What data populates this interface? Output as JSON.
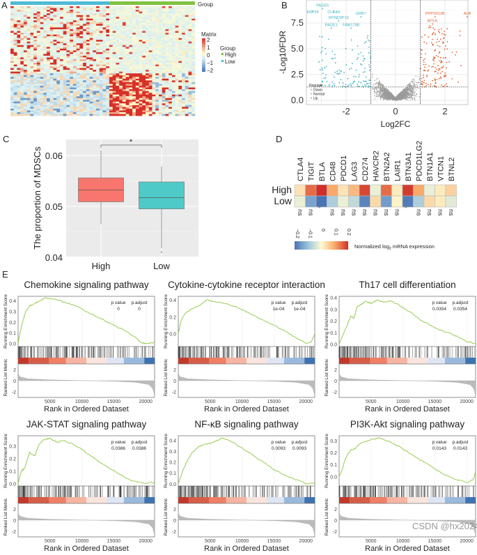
{
  "watermark": "CSDN @hx2024",
  "chart_data": [
    {
      "panel": "A",
      "type": "heatmap",
      "annotation_label": "Group",
      "color_legend": {
        "title": "Matrix",
        "ticks": [
          "2",
          "1",
          "0",
          "−1",
          "−2"
        ],
        "range": [
          -2,
          2
        ]
      },
      "group_legend": {
        "title": "Group",
        "items": [
          {
            "label": "High",
            "color": "#7fc241"
          },
          {
            "label": "Low",
            "color": "#4dbbd5"
          }
        ]
      },
      "column_groups": [
        "Low",
        "High"
      ],
      "colors": {
        "low": "#4575b4",
        "mid_low": "#d6eef5",
        "mid": "#fffbd0",
        "high": "#d73027"
      }
    },
    {
      "panel": "B",
      "type": "scatter",
      "xlabel": "Log2FC",
      "ylabel": "-Log10FDR",
      "xlim": [
        -3.6,
        2.95
      ],
      "ylim": [
        -0.3,
        9.7
      ],
      "xticks": [
        -2,
        0,
        2
      ],
      "yticks": [
        "0.0",
        "2.5",
        "5.0",
        "7.5"
      ],
      "vlines": [
        -1,
        1
      ],
      "hline": 1.3,
      "grid": true,
      "legend": {
        "title": "Regulate",
        "position": "bottom-left",
        "items": [
          {
            "label": "Down",
            "color": "#3bb3c3"
          },
          {
            "label": "Normal",
            "color": "#9a9a9a"
          },
          {
            "label": "Up",
            "color": "#e0622f"
          }
        ]
      },
      "labeled_genes": [
        {
          "gene": "PAGE5",
          "x": -2.95,
          "y": 9.1,
          "group": "Down"
        },
        {
          "gene": "KRT24",
          "x": -3.35,
          "y": 8.8,
          "group": "Down"
        },
        {
          "gene": "CLCA4",
          "x": -2.5,
          "y": 8.8,
          "group": "Down"
        },
        {
          "gene": "MTND2P13",
          "x": -2.3,
          "y": 7.9,
          "group": "Down"
        },
        {
          "gene": "GRB7",
          "x": -1.4,
          "y": 8.3,
          "group": "Down"
        },
        {
          "gene": "PAGE1",
          "x": -2.6,
          "y": 7.2,
          "group": "Down"
        },
        {
          "gene": "FAM178B",
          "x": -1.8,
          "y": 7.2,
          "group": "Down"
        },
        {
          "gene": "PPP1R12B",
          "x": 1.6,
          "y": 8.3,
          "group": "Up"
        },
        {
          "gene": "ALB",
          "x": 2.9,
          "y": 8.3,
          "group": "Up"
        },
        {
          "gene": "MYLK",
          "x": 1.5,
          "y": 7.6,
          "group": "Up"
        }
      ]
    },
    {
      "panel": "C",
      "type": "box",
      "ylabel": "The proportion of MDSCs",
      "ylim": [
        0.04,
        0.0625
      ],
      "yticks": [
        "0.04",
        "0.05",
        "0.06"
      ],
      "categories": [
        "High",
        "Low"
      ],
      "boxes": [
        {
          "name": "High",
          "color": "#f8766d",
          "whisker_low": 0.0465,
          "q1": 0.0509,
          "median": 0.0532,
          "q3": 0.0556,
          "whisker_high": 0.061,
          "outliers": []
        },
        {
          "name": "Low",
          "color": "#4ecbc8",
          "whisker_low": 0.0418,
          "q1": 0.0495,
          "median": 0.0517,
          "q3": 0.0548,
          "whisker_high": 0.0578,
          "outliers": [
            0.041
          ]
        }
      ],
      "significance": "*",
      "grid": true
    },
    {
      "panel": "D",
      "type": "heatmap",
      "genes": [
        "CTLA4",
        "TIGIT",
        "BTLA",
        "CD48",
        "PDCD1",
        "LAG3",
        "CD274",
        "HAVCR2",
        "BTN2A2",
        "LAIR1",
        "BTN3A1",
        "PDCD1LG2",
        "BTN1A1",
        "VTCN1",
        "BTNL2"
      ],
      "rows": [
        {
          "label": "High",
          "values": [
            0.03,
            0.15,
            0.2,
            0.1,
            0.03,
            0.08,
            0.18,
            -0.02,
            0.15,
            0.02,
            0.19,
            0.1,
            -0.02,
            0.02,
            0.05
          ]
        },
        {
          "label": "Low",
          "values": [
            -0.02,
            -0.14,
            -0.2,
            -0.08,
            -0.02,
            -0.06,
            -0.18,
            0.04,
            -0.15,
            0.01,
            -0.19,
            -0.08,
            0.04,
            0.02,
            -0.03
          ]
        }
      ],
      "significance": [
        "ns",
        "ns",
        "*",
        "ns",
        "ns",
        "ns",
        "ns",
        "ns",
        "ns",
        "ns",
        "*",
        "ns",
        "ns",
        "ns",
        "ns"
      ],
      "colorbar": {
        "ticks": [
          "−0.2",
          "−0.1",
          "0",
          "0.1",
          "0.2"
        ],
        "range": [
          -0.2,
          0.2
        ],
        "label_main": "Normalized log",
        "label_sub": "2",
        "label_rest": " mRNA expression"
      }
    },
    {
      "panel": "E",
      "type": "line",
      "xlabel": "Rank in Ordered Dataset",
      "ylabel_top": "Running Enrichment Score",
      "ylabel_bottom": "Ranked List Metric",
      "xticks": [
        "5000",
        "10000",
        "15000",
        "20000"
      ],
      "xlim": [
        0,
        21400
      ],
      "metric_ticks": [
        "2",
        "0",
        "-2"
      ],
      "metric_ylim": [
        -3,
        3
      ],
      "ranked_metric": [
        [
          0,
          1.3
        ],
        [
          300,
          0.7
        ],
        [
          1500,
          0.35
        ],
        [
          5000,
          0.15
        ],
        [
          10000,
          0.02
        ],
        [
          15000,
          -0.1
        ],
        [
          18500,
          -0.3
        ],
        [
          20500,
          -0.7
        ],
        [
          21100,
          -1.4
        ],
        [
          21400,
          -2.7
        ]
      ],
      "line_color": "#8dc63f",
      "stat_headers": [
        "p value",
        "p.adjust"
      ],
      "panels": [
        {
          "title": "Chemokine signaling pathway",
          "p_value": "0",
          "p_adjust": "0",
          "ylim": [
            -0.03,
            0.44
          ],
          "yticks": [
            "0.0",
            "0.1",
            "0.2",
            "0.3",
            "0.4"
          ],
          "es": [
            [
              0,
              0
            ],
            [
              300,
              0.1
            ],
            [
              700,
              0.2
            ],
            [
              1200,
              0.3
            ],
            [
              1800,
              0.35
            ],
            [
              2500,
              0.37
            ],
            [
              3200,
              0.39
            ],
            [
              4000,
              0.42
            ],
            [
              5000,
              0.42
            ],
            [
              6000,
              0.41
            ],
            [
              7500,
              0.38
            ],
            [
              9000,
              0.35
            ],
            [
              11000,
              0.29
            ],
            [
              13000,
              0.23
            ],
            [
              15000,
              0.17
            ],
            [
              17000,
              0.11
            ],
            [
              18500,
              0.05
            ],
            [
              19500,
              0.0
            ],
            [
              20500,
              0.0
            ],
            [
              21400,
              0.01
            ]
          ]
        },
        {
          "title": "Cytokine-cytokine receptor interaction",
          "p_value": "1e-04",
          "p_adjust": "1e-04",
          "ylim": [
            -0.15,
            0.44
          ],
          "yticks": [
            "0.0",
            "0.2",
            "0.4"
          ],
          "es": [
            [
              0,
              0
            ],
            [
              400,
              0.15
            ],
            [
              1000,
              0.23
            ],
            [
              1800,
              0.28
            ],
            [
              3000,
              0.32
            ],
            [
              4500,
              0.4
            ],
            [
              5500,
              0.38
            ],
            [
              7000,
              0.36
            ],
            [
              9000,
              0.32
            ],
            [
              11000,
              0.25
            ],
            [
              13000,
              0.17
            ],
            [
              15000,
              0.1
            ],
            [
              17000,
              0.02
            ],
            [
              18500,
              -0.05
            ],
            [
              20000,
              -0.11
            ],
            [
              20800,
              -0.1
            ],
            [
              21400,
              0.0
            ]
          ]
        },
        {
          "title": "Th17 cell differentiation",
          "p_value": "0.0354",
          "p_adjust": "0.0354",
          "ylim": [
            -0.02,
            0.41
          ],
          "yticks": [
            "0.0",
            "0.1",
            "0.2",
            "0.3",
            "0.4"
          ],
          "es": [
            [
              0,
              0
            ],
            [
              600,
              0.08
            ],
            [
              1200,
              0.15
            ],
            [
              1800,
              0.24
            ],
            [
              2300,
              0.22
            ],
            [
              2800,
              0.32
            ],
            [
              3500,
              0.34
            ],
            [
              4200,
              0.37
            ],
            [
              5000,
              0.35
            ],
            [
              6000,
              0.38
            ],
            [
              7000,
              0.36
            ],
            [
              8000,
              0.37
            ],
            [
              9500,
              0.33
            ],
            [
              11000,
              0.28
            ],
            [
              13000,
              0.2
            ],
            [
              15000,
              0.14
            ],
            [
              17000,
              0.1
            ],
            [
              18500,
              0.07
            ],
            [
              20000,
              0.02
            ],
            [
              21400,
              0.01
            ]
          ]
        },
        {
          "title": "JAK-STAT signaling pathway",
          "p_value": "0.0386",
          "p_adjust": "0.0386",
          "ylim": [
            -0.02,
            0.38
          ],
          "yticks": [
            "0.0",
            "0.1",
            "0.2",
            "0.3"
          ],
          "es": [
            [
              0,
              0
            ],
            [
              500,
              0.1
            ],
            [
              1000,
              0.12
            ],
            [
              1800,
              0.25
            ],
            [
              2600,
              0.22
            ],
            [
              3200,
              0.3
            ],
            [
              4000,
              0.35
            ],
            [
              5000,
              0.36
            ],
            [
              6000,
              0.33
            ],
            [
              7000,
              0.34
            ],
            [
              8500,
              0.32
            ],
            [
              10000,
              0.27
            ],
            [
              12000,
              0.2
            ],
            [
              14000,
              0.13
            ],
            [
              16000,
              0.07
            ],
            [
              18000,
              0.02
            ],
            [
              20000,
              0.0
            ],
            [
              21400,
              0.01
            ]
          ]
        },
        {
          "title": "NF-κB signaling pathway",
          "p_value": "0.0093",
          "p_adjust": "0.0093",
          "ylim": [
            -0.02,
            0.44
          ],
          "yticks": [
            "0.0",
            "0.1",
            "0.2",
            "0.3",
            "0.4"
          ],
          "es": [
            [
              0,
              0
            ],
            [
              600,
              0.1
            ],
            [
              1300,
              0.2
            ],
            [
              2000,
              0.27
            ],
            [
              3000,
              0.33
            ],
            [
              4000,
              0.36
            ],
            [
              5500,
              0.38
            ],
            [
              7000,
              0.42
            ],
            [
              8500,
              0.38
            ],
            [
              10000,
              0.33
            ],
            [
              12000,
              0.25
            ],
            [
              14000,
              0.17
            ],
            [
              16000,
              0.1
            ],
            [
              18000,
              0.05
            ],
            [
              20000,
              0.0
            ],
            [
              21400,
              0.01
            ]
          ]
        },
        {
          "title": "PI3K-Akt signaling pathway",
          "p_value": "0.0143",
          "p_adjust": "0.0143",
          "ylim": [
            -0.08,
            0.34
          ],
          "yticks": [
            "0.0",
            "0.1",
            "0.2",
            "0.3"
          ],
          "es": [
            [
              0,
              0
            ],
            [
              500,
              0.06
            ],
            [
              1000,
              0.15
            ],
            [
              1800,
              0.22
            ],
            [
              2500,
              0.23
            ],
            [
              3500,
              0.28
            ],
            [
              5000,
              0.31
            ],
            [
              6500,
              0.32
            ],
            [
              8000,
              0.29
            ],
            [
              10000,
              0.23
            ],
            [
              12000,
              0.16
            ],
            [
              14000,
              0.1
            ],
            [
              16000,
              0.03
            ],
            [
              18000,
              -0.02
            ],
            [
              20000,
              -0.05
            ],
            [
              21000,
              -0.03
            ],
            [
              21400,
              0.04
            ]
          ]
        }
      ]
    }
  ]
}
